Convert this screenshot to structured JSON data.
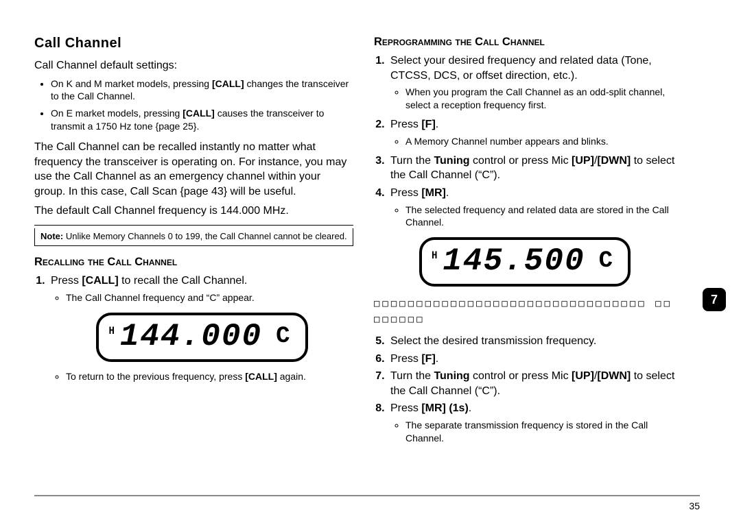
{
  "left": {
    "heading": "Call Channel",
    "intro": "Call Channel default settings:",
    "default_bullets": [
      "On K and M market models, pressing [CALL] changes the transceiver to the Call Channel.",
      "On E market models, pressing [CALL] causes the transceiver to transmit a 1750 Hz tone {page 25}."
    ],
    "para1": "The Call Channel can be recalled instantly no matter what frequency the transceiver is operating on.  For instance, you may use the Call Channel as an emergency channel within your group.  In this case, Call Scan {page 43} will be useful.",
    "para2": "The default Call Channel frequency is 144.000 MHz.",
    "note_lead": "Note:",
    "note_body": "  Unlike Memory Channels 0 to 199, the Call Channel cannot be cleared.",
    "sub1": "Recalling the Call Channel",
    "step1_pre": "Press ",
    "step1_bold": "[CALL]",
    "step1_post": " to recall the Call Channel.",
    "step1_b1": "The Call Channel frequency and “C” appear.",
    "lcd_h": "H",
    "lcd_freq": "144.000",
    "lcd_c": "C",
    "step1_b2_pre": "To return to the previous frequency, press ",
    "step1_b2_bold": "[CALL]",
    "step1_b2_post": " again."
  },
  "right": {
    "sub1": "Reprogramming the Call Channel",
    "s1": "Select your desired frequency and related data (Tone, CTCSS, DCS, or offset direction, etc.).",
    "s1_b1": "When you program the Call Channel as an odd-split channel, select a reception frequency first.",
    "s2_pre": "Press ",
    "s2_bold": "[F]",
    "s2_post": ".",
    "s2_b1": "A Memory Channel number appears and blinks.",
    "s3_pre": "Turn the ",
    "s3_b1": "Tuning",
    "s3_mid1": " control or press Mic ",
    "s3_b2": "[UP]",
    "s3_slash": "/",
    "s3_b3": "[DWN]",
    "s3_post": " to select the Call Channel (“C”).",
    "s4_pre": "Press ",
    "s4_bold": "[MR]",
    "s4_post": ".",
    "s4_b1": "The selected frequency and related data are stored in the Call Channel.",
    "lcd_h": "H",
    "lcd_freq": "145.500",
    "lcd_c": "C",
    "placeholder": "□□□□□□□□□□□□□□□□□□□□□□□□□□□□□□□□ □□□□□□□□",
    "s5": "Select the desired transmission frequency.",
    "s6_pre": "Press ",
    "s6_bold": "[F]",
    "s6_post": ".",
    "s7_pre": "Turn the ",
    "s7_b1": "Tuning",
    "s7_mid1": " control or press Mic ",
    "s7_b2": "[UP]",
    "s7_b3": "[DWN]",
    "s7_post": " to select the Call Channel (“C”).",
    "s8_pre": "Press ",
    "s8_bold": "[MR] (1s)",
    "s8_post": ".",
    "s8_b1": "The separate transmission frequency is stored in the Call Channel."
  },
  "badge": "7",
  "page_num": "35"
}
